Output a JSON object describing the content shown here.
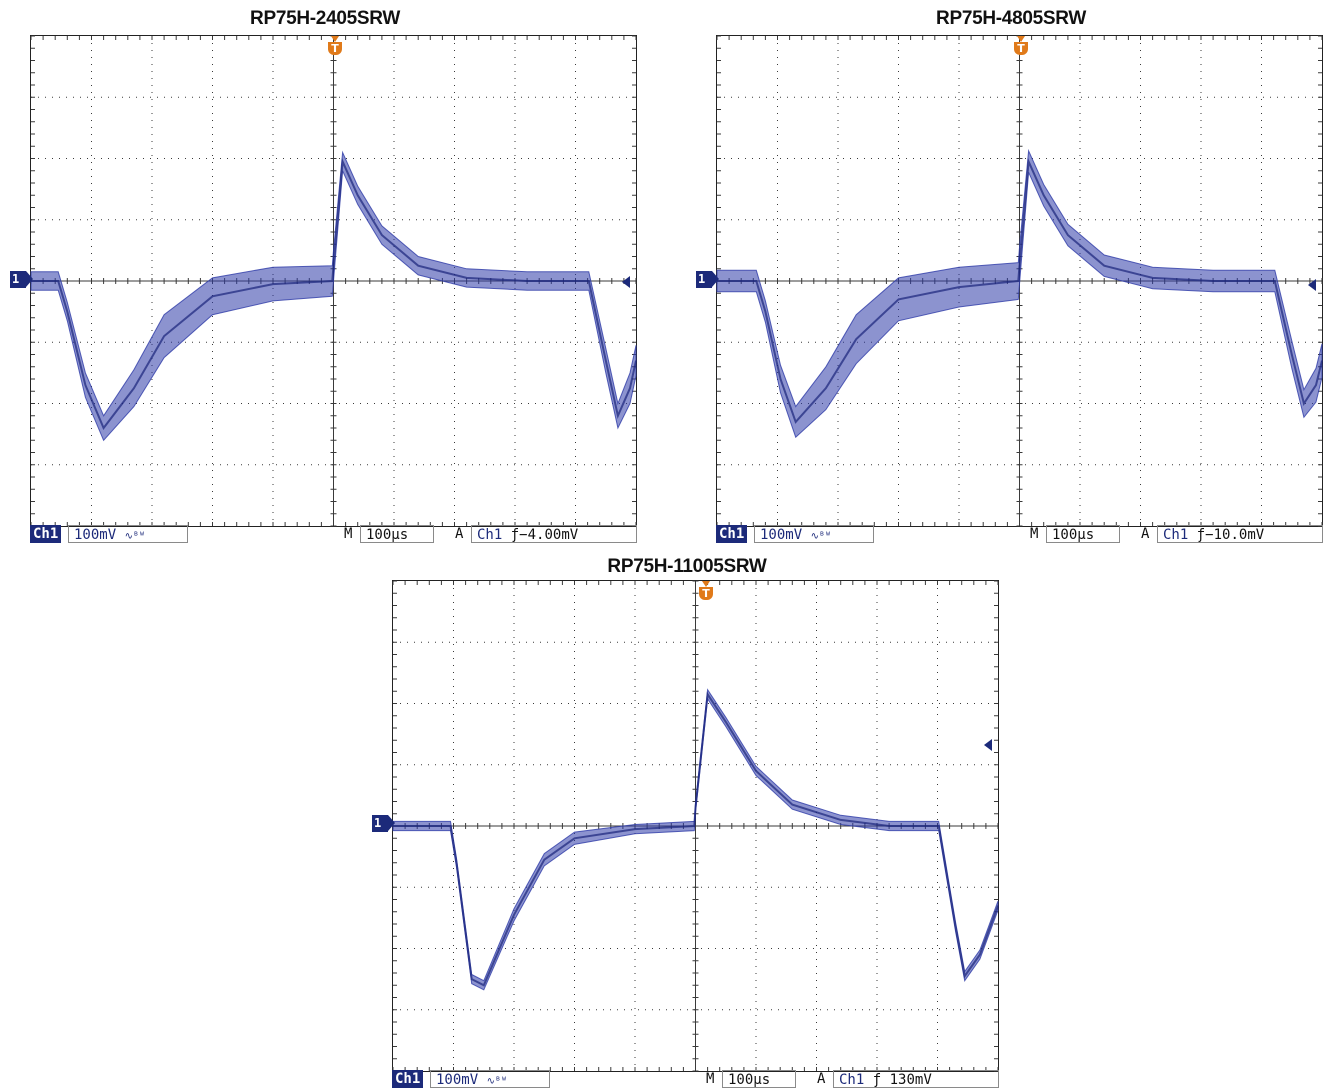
{
  "colors": {
    "trace": "#2e3ba8",
    "badge": "#1c2a7a",
    "trigger": "#e07a1a",
    "grid": "#3a3a3a"
  },
  "chart_data": [
    {
      "type": "line",
      "title": "RP75H-2405SRW",
      "xlabel": "",
      "ylabel": "",
      "x_divisions": 10,
      "y_divisions": 8,
      "x_per_div": "100µs",
      "y_per_div": "100mV",
      "xlim": [
        -500,
        500
      ],
      "ylim": [
        -400,
        400
      ],
      "grid": true,
      "trigger_x": 0,
      "series": [
        {
          "x": [
            -500,
            -455,
            -440,
            -410,
            -380,
            -330,
            -280,
            -200,
            -100,
            -2,
            0,
            15,
            40,
            80,
            140,
            220,
            320,
            420,
            422,
            450,
            470,
            490,
            500
          ],
          "y": [
            0,
            0,
            -50,
            -170,
            -240,
            -175,
            -90,
            -25,
            -5,
            0,
            25,
            195,
            140,
            75,
            25,
            5,
            0,
            0,
            0,
            -130,
            -220,
            -175,
            -130
          ],
          "band": [
            30,
            30,
            30,
            40,
            40,
            60,
            70,
            60,
            55,
            50,
            50,
            30,
            30,
            30,
            30,
            30,
            30,
            30,
            30,
            40,
            40,
            50,
            50
          ]
        }
      ],
      "status": {
        "channel": "Ch1",
        "volts": "100mV",
        "bw": "∿ᴮᵂ",
        "m": "M",
        "time": "100µs",
        "a": "A",
        "trig_ch": "Ch1",
        "edge": "ƒ",
        "level": "−4.00mV"
      }
    },
    {
      "type": "line",
      "title": "RP75H-4805SRW",
      "xlabel": "",
      "ylabel": "",
      "x_divisions": 10,
      "y_divisions": 8,
      "x_per_div": "100µs",
      "y_per_div": "100mV",
      "xlim": [
        -500,
        500
      ],
      "ylim": [
        -400,
        400
      ],
      "grid": true,
      "trigger_x": 0,
      "series": [
        {
          "x": [
            -500,
            -435,
            -420,
            -395,
            -370,
            -320,
            -270,
            -200,
            -100,
            -2,
            0,
            15,
            40,
            80,
            140,
            220,
            320,
            420,
            422,
            450,
            470,
            490,
            500
          ],
          "y": [
            0,
            0,
            -50,
            -160,
            -230,
            -175,
            -95,
            -30,
            -10,
            0,
            25,
            195,
            140,
            75,
            25,
            5,
            0,
            0,
            0,
            -120,
            -200,
            -170,
            -130
          ],
          "band": [
            35,
            35,
            35,
            45,
            50,
            70,
            80,
            70,
            65,
            60,
            60,
            35,
            35,
            35,
            35,
            35,
            35,
            35,
            35,
            45,
            45,
            55,
            55
          ]
        }
      ],
      "status": {
        "channel": "Ch1",
        "volts": "100mV",
        "bw": "∿ᴮᵂ",
        "m": "M",
        "time": "100µs",
        "a": "A",
        "trig_ch": "Ch1",
        "edge": "ƒ",
        "level": "−10.0mV"
      }
    },
    {
      "type": "line",
      "title": "RP75H-11005SRW",
      "xlabel": "",
      "ylabel": "",
      "x_divisions": 10,
      "y_divisions": 8,
      "x_per_div": "100µs",
      "y_per_div": "100mV",
      "xlim": [
        -500,
        500
      ],
      "ylim": [
        -400,
        400
      ],
      "grid": true,
      "trigger_x": 0,
      "series": [
        {
          "x": [
            -500,
            -405,
            -395,
            -370,
            -350,
            -300,
            -250,
            -200,
            -100,
            -2,
            0,
            20,
            50,
            100,
            160,
            240,
            320,
            400,
            402,
            430,
            445,
            470,
            500
          ],
          "y": [
            0,
            0,
            -60,
            -250,
            -260,
            -145,
            -55,
            -20,
            -5,
            0,
            30,
            215,
            170,
            90,
            35,
            10,
            0,
            0,
            0,
            -165,
            -245,
            -210,
            -130
          ],
          "band": [
            15,
            15,
            15,
            15,
            15,
            20,
            20,
            20,
            15,
            15,
            15,
            15,
            15,
            15,
            15,
            15,
            15,
            15,
            15,
            15,
            15,
            15,
            15
          ]
        }
      ],
      "status": {
        "channel": "Ch1",
        "volts": "100mV",
        "bw": "∿ᴮᵂ",
        "m": "M",
        "time": "100µs",
        "a": "A",
        "trig_ch": "Ch1",
        "edge": "ƒ",
        "level": "130mV"
      }
    }
  ]
}
